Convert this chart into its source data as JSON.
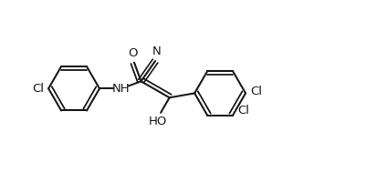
{
  "bg": "#ffffff",
  "lc": "#1a1a1a",
  "lw": 1.5,
  "lw_inner": 1.3,
  "figw": 4.24,
  "figh": 1.89,
  "dpi": 100,
  "xlim": [
    0,
    10.2
  ],
  "ylim": [
    0.3,
    5.0
  ],
  "ring_r": 0.7,
  "inner_off": 0.105,
  "fontsize": 9.5
}
